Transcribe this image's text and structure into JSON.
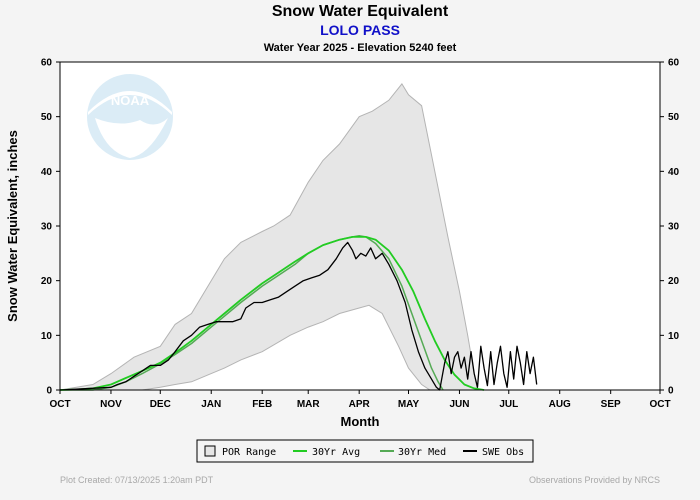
{
  "header": {
    "title": "Snow Water Equivalent",
    "station": "LOLO PASS",
    "subtitle": "Water Year 2025 -  Elevation 5240 feet"
  },
  "logo": {
    "text": "NOAA"
  },
  "footer": {
    "created": "Plot Created: 07/13/2025 1:20am PDT",
    "provider": "Observations Provided by NRCS"
  },
  "colors": {
    "por": "#e6e6e6",
    "por_edge": "#b4b4b4",
    "avg": "#22cc22",
    "med": "#55aa55",
    "obs": "#000000"
  },
  "chart_data": {
    "type": "line",
    "xlabel": "Month",
    "ylabel": "Snow Water Equivalent, inches",
    "x_unit": "day of water year (Oct 1 = 0)",
    "xlim": [
      0,
      365
    ],
    "ylim": [
      0,
      60
    ],
    "month_ticks": [
      {
        "label": "OCT",
        "day": 0
      },
      {
        "label": "NOV",
        "day": 31
      },
      {
        "label": "DEC",
        "day": 61
      },
      {
        "label": "JAN",
        "day": 92
      },
      {
        "label": "FEB",
        "day": 123
      },
      {
        "label": "MAR",
        "day": 151
      },
      {
        "label": "APR",
        "day": 182
      },
      {
        "label": "MAY",
        "day": 212
      },
      {
        "label": "JUN",
        "day": 243
      },
      {
        "label": "JUL",
        "day": 273
      },
      {
        "label": "AUG",
        "day": 304
      },
      {
        "label": "SEP",
        "day": 335
      },
      {
        "label": "OCT",
        "day": 365
      }
    ],
    "y_ticks": [
      0,
      10,
      20,
      30,
      40,
      50,
      60
    ],
    "legend": [
      "POR Range",
      "30Yr Avg",
      "30Yr Med",
      "SWE Obs"
    ],
    "series": [
      {
        "name": "POR Range Max",
        "points": [
          [
            0,
            0
          ],
          [
            10,
            0.5
          ],
          [
            20,
            1
          ],
          [
            31,
            3
          ],
          [
            45,
            6
          ],
          [
            61,
            8
          ],
          [
            70,
            12
          ],
          [
            80,
            14
          ],
          [
            92,
            20
          ],
          [
            100,
            24
          ],
          [
            110,
            27
          ],
          [
            123,
            29
          ],
          [
            130,
            30
          ],
          [
            140,
            32
          ],
          [
            151,
            38
          ],
          [
            160,
            42
          ],
          [
            170,
            45
          ],
          [
            182,
            50
          ],
          [
            190,
            51
          ],
          [
            200,
            53
          ],
          [
            208,
            56
          ],
          [
            212,
            54
          ],
          [
            220,
            52
          ],
          [
            228,
            40
          ],
          [
            236,
            28
          ],
          [
            243,
            18
          ],
          [
            248,
            10
          ],
          [
            252,
            3
          ],
          [
            254,
            0
          ]
        ]
      },
      {
        "name": "POR Range Min",
        "points": [
          [
            0,
            0
          ],
          [
            31,
            0
          ],
          [
            50,
            0
          ],
          [
            61,
            0.5
          ],
          [
            70,
            1
          ],
          [
            80,
            1.5
          ],
          [
            92,
            3
          ],
          [
            100,
            4
          ],
          [
            110,
            5.5
          ],
          [
            123,
            7
          ],
          [
            140,
            10
          ],
          [
            151,
            11.5
          ],
          [
            160,
            12.5
          ],
          [
            170,
            14
          ],
          [
            182,
            15
          ],
          [
            188,
            15.5
          ],
          [
            196,
            14
          ],
          [
            206,
            8
          ],
          [
            212,
            4
          ],
          [
            220,
            1
          ],
          [
            225,
            0
          ]
        ]
      },
      {
        "name": "30Yr Avg",
        "points": [
          [
            0,
            0
          ],
          [
            10,
            0.1
          ],
          [
            20,
            0.3
          ],
          [
            31,
            1
          ],
          [
            40,
            2.2
          ],
          [
            50,
            3.5
          ],
          [
            61,
            5
          ],
          [
            70,
            6.8
          ],
          [
            80,
            9
          ],
          [
            92,
            12
          ],
          [
            100,
            14
          ],
          [
            110,
            16.5
          ],
          [
            123,
            19.5
          ],
          [
            133,
            21.5
          ],
          [
            143,
            23.5
          ],
          [
            151,
            25
          ],
          [
            160,
            26.5
          ],
          [
            170,
            27.5
          ],
          [
            178,
            28
          ],
          [
            182,
            28
          ],
          [
            186,
            28
          ],
          [
            192,
            27.5
          ],
          [
            200,
            25.5
          ],
          [
            208,
            22
          ],
          [
            215,
            18
          ],
          [
            222,
            13
          ],
          [
            228,
            9
          ],
          [
            234,
            5.5
          ],
          [
            240,
            2.8
          ],
          [
            246,
            1
          ],
          [
            252,
            0.3
          ],
          [
            258,
            0
          ]
        ]
      },
      {
        "name": "30Yr Med",
        "points": [
          [
            0,
            0
          ],
          [
            20,
            0
          ],
          [
            31,
            0.5
          ],
          [
            40,
            1.5
          ],
          [
            50,
            3
          ],
          [
            61,
            4.8
          ],
          [
            70,
            6.5
          ],
          [
            80,
            8.5
          ],
          [
            92,
            11.5
          ],
          [
            100,
            13.5
          ],
          [
            110,
            16
          ],
          [
            123,
            19
          ],
          [
            133,
            21
          ],
          [
            143,
            23
          ],
          [
            151,
            25
          ],
          [
            160,
            26.5
          ],
          [
            170,
            27.5
          ],
          [
            178,
            28
          ],
          [
            182,
            28.2
          ],
          [
            186,
            28
          ],
          [
            192,
            26.8
          ],
          [
            200,
            24
          ],
          [
            208,
            19
          ],
          [
            214,
            14
          ],
          [
            220,
            9
          ],
          [
            226,
            4
          ],
          [
            230,
            1.5
          ],
          [
            233,
            0
          ]
        ]
      },
      {
        "name": "SWE Obs",
        "points": [
          [
            0,
            0
          ],
          [
            31,
            0.5
          ],
          [
            35,
            1
          ],
          [
            40,
            1.5
          ],
          [
            45,
            2.5
          ],
          [
            50,
            3.5
          ],
          [
            55,
            4.5
          ],
          [
            61,
            4.5
          ],
          [
            66,
            5.5
          ],
          [
            70,
            7
          ],
          [
            75,
            9
          ],
          [
            80,
            10
          ],
          [
            85,
            11.5
          ],
          [
            90,
            12
          ],
          [
            95,
            12.5
          ],
          [
            100,
            12.5
          ],
          [
            105,
            12.5
          ],
          [
            110,
            13
          ],
          [
            113,
            15
          ],
          [
            118,
            16
          ],
          [
            123,
            16
          ],
          [
            128,
            16.5
          ],
          [
            133,
            17
          ],
          [
            138,
            18
          ],
          [
            143,
            19
          ],
          [
            148,
            20
          ],
          [
            153,
            20.5
          ],
          [
            158,
            21
          ],
          [
            163,
            22
          ],
          [
            168,
            24
          ],
          [
            172,
            26
          ],
          [
            175,
            27
          ],
          [
            178,
            25.5
          ],
          [
            180,
            24
          ],
          [
            183,
            25
          ],
          [
            186,
            24.5
          ],
          [
            189,
            26
          ],
          [
            192,
            24
          ],
          [
            196,
            25
          ],
          [
            200,
            23
          ],
          [
            205,
            20
          ],
          [
            210,
            16
          ],
          [
            214,
            11
          ],
          [
            218,
            7
          ],
          [
            222,
            4
          ],
          [
            226,
            2
          ],
          [
            229,
            0.5
          ],
          [
            231,
            0
          ],
          [
            234,
            5
          ],
          [
            236,
            7
          ],
          [
            238,
            3
          ],
          [
            240,
            6
          ],
          [
            242,
            7
          ],
          [
            244,
            4
          ],
          [
            246,
            6
          ],
          [
            248,
            2
          ],
          [
            250,
            7
          ],
          [
            252,
            3
          ],
          [
            254,
            0.5
          ],
          [
            256,
            8
          ],
          [
            258,
            4
          ],
          [
            260,
            0.8
          ],
          [
            262,
            7
          ],
          [
            264,
            1
          ],
          [
            266,
            5
          ],
          [
            268,
            8
          ],
          [
            270,
            3
          ],
          [
            272,
            0.5
          ],
          [
            274,
            7
          ],
          [
            276,
            2
          ],
          [
            278,
            8
          ],
          [
            280,
            5
          ],
          [
            282,
            1
          ],
          [
            284,
            7
          ],
          [
            286,
            3
          ],
          [
            288,
            6
          ],
          [
            290,
            1
          ]
        ]
      }
    ]
  }
}
